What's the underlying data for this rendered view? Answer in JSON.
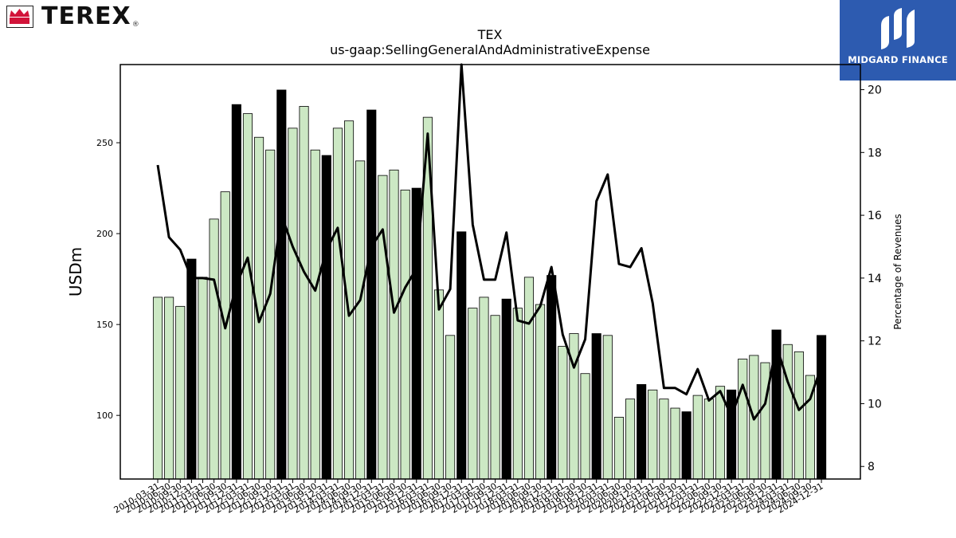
{
  "header": {
    "left_logo": {
      "name": "terex-logo",
      "text": "TEREX",
      "reg": "®",
      "color": "#d2143a"
    },
    "right_logo": {
      "name": "midgard-finance-logo",
      "text": "MIDGARD FINANCE",
      "bg": "#2d5bb0"
    }
  },
  "chart_data": {
    "type": "bar",
    "title": "TEX",
    "subtitle": "us-gaap:SellingGeneralAndAdministrativeExpense",
    "ylabel": "USDm",
    "y2label": "Percentage of Revenues",
    "ylim": [
      65,
      293
    ],
    "y2lim": [
      7.6,
      20.8
    ],
    "yticks": [
      100,
      150,
      200,
      250
    ],
    "y2ticks": [
      8,
      10,
      12,
      14,
      16,
      18,
      20
    ],
    "colors": {
      "bar": "#cce8c4",
      "bar_highlight": "#000000",
      "line": "#000000"
    },
    "categories": [
      "2010-03-31",
      "2010-06-30",
      "2010-09-30",
      "2010-12-31",
      "2011-03-31",
      "2011-06-30",
      "2011-09-30",
      "2011-12-31",
      "2012-03-31",
      "2012-06-30",
      "2012-09-30",
      "2012-12-31",
      "2013-03-31",
      "2013-06-30",
      "2013-09-30",
      "2013-12-31",
      "2014-03-31",
      "2014-06-30",
      "2014-09-30",
      "2014-12-31",
      "2015-03-31",
      "2015-06-30",
      "2015-09-30",
      "2015-12-31",
      "2016-03-31",
      "2016-06-30",
      "2016-09-30",
      "2016-12-31",
      "2017-03-31",
      "2017-06-30",
      "2017-09-30",
      "2017-12-31",
      "2018-03-31",
      "2018-06-30",
      "2018-09-30",
      "2018-12-31",
      "2019-03-31",
      "2019-06-30",
      "2019-09-30",
      "2019-12-31",
      "2020-03-31",
      "2020-06-30",
      "2020-09-30",
      "2020-12-31",
      "2021-03-31",
      "2021-06-30",
      "2021-09-30",
      "2021-12-31",
      "2022-03-31",
      "2022-06-30",
      "2022-09-30",
      "2022-12-31",
      "2023-03-31",
      "2023-06-30",
      "2023-09-30",
      "2023-12-31",
      "2024-03-31",
      "2024-06-30",
      "2024-09-30",
      "2024-12-31"
    ],
    "series": [
      {
        "kind": "bar",
        "axis": "left",
        "values": [
          165,
          165,
          160,
          186,
          176,
          208,
          223,
          271,
          266,
          253,
          246,
          279,
          258,
          270,
          246,
          243,
          258,
          262,
          240,
          268,
          232,
          235,
          224,
          225,
          264,
          169,
          144,
          201,
          159,
          165,
          155,
          164,
          159,
          176,
          161,
          177,
          138,
          145,
          123,
          145,
          144,
          99,
          109,
          117,
          114,
          109,
          104,
          102,
          111,
          109,
          116,
          114,
          131,
          133,
          129,
          147,
          139,
          135,
          122,
          144
        ],
        "highlight": [
          3,
          7,
          11,
          15,
          19,
          23,
          27,
          31,
          35,
          39,
          43,
          47,
          51,
          55,
          59
        ]
      },
      {
        "kind": "line",
        "axis": "right",
        "values": [
          17.6,
          15.3,
          14.9,
          14.0,
          14.0,
          13.95,
          12.4,
          13.8,
          14.65,
          12.6,
          13.5,
          16.0,
          15.0,
          14.2,
          13.6,
          14.9,
          15.6,
          12.8,
          13.3,
          15.0,
          15.55,
          12.9,
          13.7,
          14.3,
          18.6,
          13.0,
          13.65,
          20.8,
          15.7,
          13.95,
          13.95,
          15.45,
          12.65,
          12.55,
          13.1,
          14.35,
          12.2,
          11.15,
          12.05,
          16.45,
          17.3,
          14.45,
          14.35,
          14.95,
          13.2,
          10.5,
          10.5,
          10.3,
          11.1,
          10.1,
          10.4,
          9.6,
          10.6,
          9.5,
          10.0,
          11.85,
          10.7,
          9.8,
          10.15,
          11.2
        ]
      }
    ]
  }
}
